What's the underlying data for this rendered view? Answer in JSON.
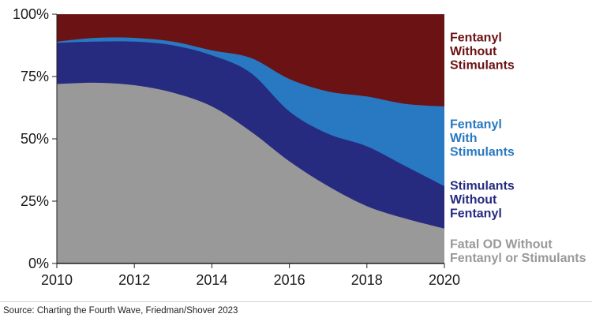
{
  "chart_data": {
    "type": "area",
    "stacked": true,
    "normalized_percent": true,
    "x": [
      2010,
      2011,
      2012,
      2013,
      2014,
      2015,
      2016,
      2017,
      2018,
      2019,
      2020
    ],
    "xlim": [
      2010,
      2020
    ],
    "xticks": [
      "2010",
      "2012",
      "2014",
      "2016",
      "2018",
      "2020"
    ],
    "ylim": [
      0,
      100
    ],
    "yticks": [
      "0%",
      "25%",
      "50%",
      "75%",
      "100%"
    ],
    "series": [
      {
        "name": "Fatal OD Without Fentanyl or Stimulants",
        "label_lines": [
          "Fatal OD Without",
          "Fentanyl or Stimulants"
        ],
        "color": "#999999",
        "values": [
          72,
          72.5,
          71.5,
          68.5,
          63,
          53,
          41,
          31,
          23,
          18,
          14
        ]
      },
      {
        "name": "Stimulants Without Fentanyl",
        "label_lines": [
          "Stimulants",
          "Without",
          "Fentanyl"
        ],
        "color": "#262b80",
        "values": [
          16.5,
          16.5,
          17.5,
          19,
          20.5,
          23.5,
          20,
          21,
          24,
          21,
          17
        ]
      },
      {
        "name": "Fentanyl With Stimulants",
        "label_lines": [
          "Fentanyl",
          "With",
          "Stimulants"
        ],
        "color": "#2878c2",
        "values": [
          0.5,
          1.5,
          1.5,
          1.5,
          2,
          6,
          13,
          17,
          20,
          25,
          32
        ]
      },
      {
        "name": "Fentanyl Without Stimulants",
        "label_lines": [
          "Fentanyl",
          "Without",
          "Stimulants"
        ],
        "color": "#6b1214",
        "values": [
          11,
          9.5,
          9.5,
          11,
          14.5,
          17.5,
          26,
          31,
          33,
          36,
          37
        ]
      }
    ],
    "grid": false,
    "legend": "right"
  },
  "source": "Source: Charting the Fourth Wave, Friedman/Shover 2023"
}
